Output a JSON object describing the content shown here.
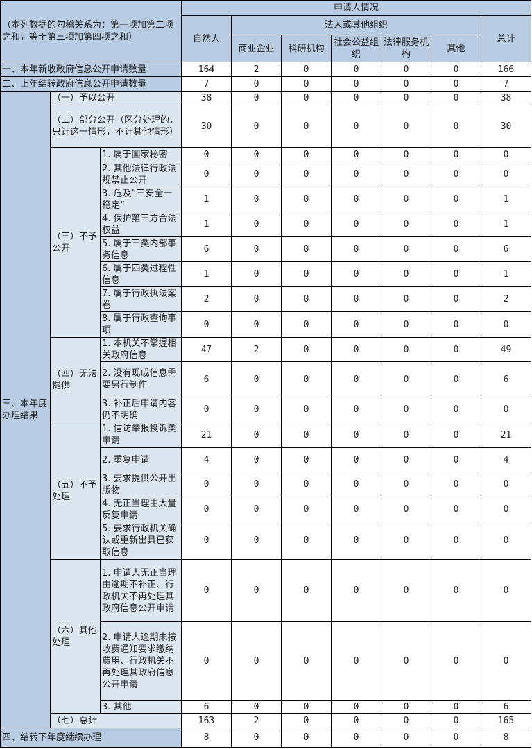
{
  "header": {
    "note": "（本列数据的勾稽关系为：第一项加第二项之和，等于第三项加第四项之和）",
    "applicant": "申请人情况",
    "natural_person": "自然人",
    "legal_group": "法人或其他组织",
    "org_types": [
      "商业企业",
      "科研机构",
      "社会公益组织",
      "法律服务机构",
      "其他"
    ],
    "total": "总计"
  },
  "section3": {
    "label": "三、本年度办理结果",
    "g3": "（三）不予公开",
    "g4": "（四）无法提供",
    "g5": "（五）不予处理",
    "g6": "（六）其他处理"
  },
  "rows": [
    {
      "label": "一、本年新收政府信息公开申请数量",
      "values": [
        164,
        2,
        0,
        0,
        0,
        0,
        166
      ]
    },
    {
      "label": "二、上年结转政府信息公开申请数量",
      "values": [
        7,
        0,
        0,
        0,
        0,
        0,
        7
      ]
    },
    {
      "label": "（一）予以公开",
      "values": [
        38,
        0,
        0,
        0,
        0,
        0,
        38
      ]
    },
    {
      "label": "（二）部分公开（区分处理的，只计这一情形，不计其他情形）",
      "values": [
        30,
        0,
        0,
        0,
        0,
        0,
        30
      ]
    },
    {
      "label": "1. 属于国家秘密",
      "values": [
        0,
        0,
        0,
        0,
        0,
        0,
        0
      ]
    },
    {
      "label": "2. 其他法律行政法规禁止公开",
      "values": [
        0,
        0,
        0,
        0,
        0,
        0,
        0
      ]
    },
    {
      "label": "3. 危及“三安全一稳定”",
      "values": [
        1,
        0,
        0,
        0,
        0,
        0,
        1
      ]
    },
    {
      "label": "4. 保护第三方合法权益",
      "values": [
        1,
        0,
        0,
        0,
        0,
        0,
        1
      ]
    },
    {
      "label": "5. 属于三类内部事务信息",
      "values": [
        6,
        0,
        0,
        0,
        0,
        0,
        6
      ]
    },
    {
      "label": "6. 属于四类过程性信息",
      "values": [
        1,
        0,
        0,
        0,
        0,
        0,
        1
      ]
    },
    {
      "label": "7. 属于行政执法案卷",
      "values": [
        2,
        0,
        0,
        0,
        0,
        0,
        2
      ]
    },
    {
      "label": "8. 属于行政查询事项",
      "values": [
        0,
        0,
        0,
        0,
        0,
        0,
        0
      ]
    },
    {
      "label": "1. 本机关不掌握相关政府信息",
      "values": [
        47,
        2,
        0,
        0,
        0,
        0,
        49
      ]
    },
    {
      "label": "2. 没有现成信息需要另行制作",
      "values": [
        6,
        0,
        0,
        0,
        0,
        0,
        6
      ]
    },
    {
      "label": "3. 补正后申请内容仍不明确",
      "values": [
        0,
        0,
        0,
        0,
        0,
        0,
        0
      ]
    },
    {
      "label": "1. 信访举报投诉类申请",
      "values": [
        21,
        0,
        0,
        0,
        0,
        0,
        21
      ]
    },
    {
      "label": "2. 重复申请",
      "values": [
        4,
        0,
        0,
        0,
        0,
        0,
        4
      ]
    },
    {
      "label": "3. 要求提供公开出版物",
      "values": [
        0,
        0,
        0,
        0,
        0,
        0,
        0
      ]
    },
    {
      "label": "4. 无正当理由大量反复申请",
      "values": [
        0,
        0,
        0,
        0,
        0,
        0,
        0
      ]
    },
    {
      "label": "5. 要求行政机关确认或重新出具已获取信息",
      "values": [
        0,
        0,
        0,
        0,
        0,
        0,
        0
      ]
    },
    {
      "label": "1. 申请人无正当理由逾期不补正、行政机关不再处理其政府信息公开申请",
      "values": [
        0,
        0,
        0,
        0,
        0,
        0,
        0
      ]
    },
    {
      "label": "2. 申请人逾期未按收费通知要求缴纳费用、行政机关不再处理其政府信息公开申请",
      "values": [
        0,
        0,
        0,
        0,
        0,
        0,
        0
      ]
    },
    {
      "label": "3. 其他",
      "values": [
        6,
        0,
        0,
        0,
        0,
        0,
        6
      ]
    },
    {
      "label": "（七）总计",
      "values": [
        163,
        2,
        0,
        0,
        0,
        0,
        165
      ]
    },
    {
      "label": "四、结转下年度继续办理",
      "values": [
        8,
        0,
        0,
        0,
        0,
        0,
        8
      ]
    }
  ]
}
